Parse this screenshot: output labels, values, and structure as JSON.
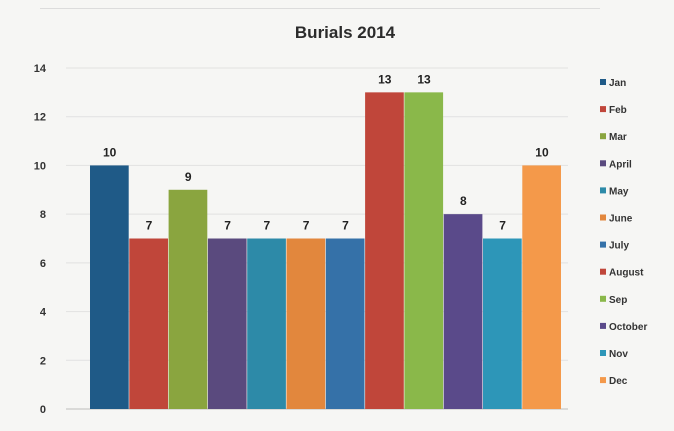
{
  "chart_data": {
    "type": "bar",
    "title": "Burials 2014",
    "xlabel": "",
    "ylabel": "",
    "ylim": [
      0,
      14
    ],
    "yticks": [
      0,
      2,
      4,
      6,
      8,
      10,
      12,
      14
    ],
    "grid": true,
    "legend_position": "right",
    "categories": [
      "Jan",
      "Feb",
      "Mar",
      "April",
      "May",
      "June",
      "July",
      "August",
      "Sep",
      "October",
      "Nov",
      "Dec"
    ],
    "values": [
      10,
      7,
      9,
      7,
      7,
      7,
      7,
      13,
      13,
      8,
      7,
      10
    ],
    "colors": [
      "#1f5a87",
      "#c0463a",
      "#8aa53f",
      "#5a4a7e",
      "#2d8aa8",
      "#e2873d",
      "#3571a8",
      "#c0463a",
      "#8ab84a",
      "#5a4a8a",
      "#2d96b8",
      "#f4994a"
    ]
  }
}
